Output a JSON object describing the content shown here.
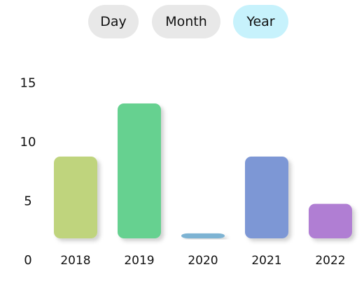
{
  "tabs": [
    {
      "label": "Day",
      "active": false
    },
    {
      "label": "Month",
      "active": false
    },
    {
      "label": "Year",
      "active": true
    }
  ],
  "colors": {
    "tab_default": "#e8e8e8",
    "tab_active": "#c7f2fc"
  },
  "chart_data": {
    "type": "bar",
    "title": "",
    "xlabel": "",
    "ylabel": "",
    "categories": [
      "2018",
      "2019",
      "2020",
      "2021",
      "2022"
    ],
    "values": [
      10,
      14.5,
      3.5,
      10,
      6
    ],
    "bar_colors": [
      "#bfd47d",
      "#66d190",
      "#7db3d3",
      "#7d97d5",
      "#b07ed3"
    ],
    "ylim": [
      0,
      16.5
    ],
    "yticks": [
      0,
      5,
      10,
      15
    ],
    "grid": false,
    "legend": "none"
  }
}
